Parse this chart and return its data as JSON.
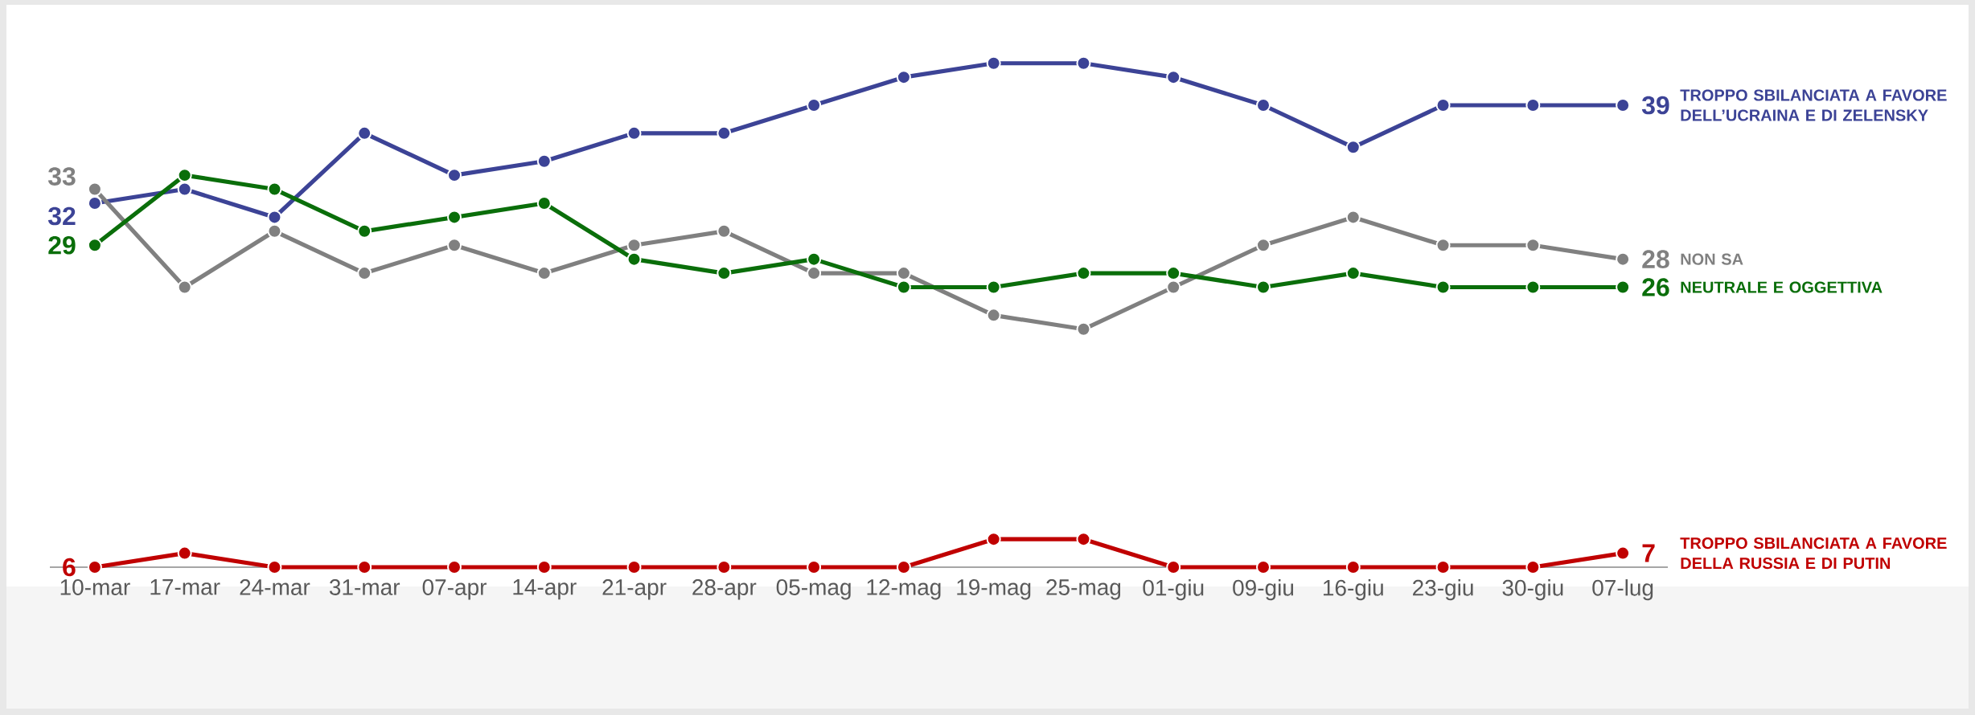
{
  "chart_data": {
    "type": "line",
    "categories": [
      "10-mar",
      "17-mar",
      "24-mar",
      "31-mar",
      "07-apr",
      "14-apr",
      "21-apr",
      "28-apr",
      "05-mag",
      "12-mag",
      "19-mag",
      "25-mag",
      "01-giu",
      "09-giu",
      "16-giu",
      "23-giu",
      "30-giu",
      "07-lug"
    ],
    "series": [
      {
        "name": "TROPPO SBILANCIATA A FAVORE DELL’UCRAINA E DI ZELENSKY",
        "color": "#3c4396",
        "values": [
          32,
          33,
          31,
          37,
          34,
          35,
          37,
          37,
          39,
          41,
          42,
          42,
          41,
          39,
          36,
          39,
          39,
          39
        ],
        "value_labels": [
          "32",
          null,
          null,
          null,
          null,
          null,
          null,
          null,
          null,
          null,
          null,
          null,
          null,
          null,
          null,
          null,
          null,
          "39"
        ]
      },
      {
        "name": "NON SA",
        "color": "#808080",
        "values": [
          33,
          26,
          30,
          27,
          29,
          27,
          29,
          30,
          27,
          27,
          24,
          23,
          26,
          29,
          31,
          29,
          29,
          28
        ],
        "value_labels": [
          "33",
          null,
          null,
          null,
          null,
          null,
          null,
          null,
          null,
          null,
          null,
          null,
          null,
          null,
          null,
          null,
          null,
          "28"
        ]
      },
      {
        "name": "NEUTRALE E OGGETTIVA",
        "color": "#0a6e0a",
        "values": [
          29,
          34,
          33,
          30,
          31,
          32,
          28,
          27,
          28,
          26,
          26,
          27,
          27,
          26,
          27,
          26,
          26,
          26
        ],
        "value_labels": [
          "29",
          null,
          null,
          null,
          null,
          null,
          null,
          null,
          null,
          null,
          null,
          null,
          null,
          null,
          null,
          null,
          null,
          "26"
        ]
      },
      {
        "name": "TROPPO SBILANCIATA A FAVORE DELLA RUSSIA E DI PUTIN",
        "color": "#c00000",
        "values": [
          6,
          7,
          6,
          6,
          6,
          6,
          6,
          6,
          6,
          6,
          8,
          8,
          6,
          6,
          6,
          6,
          6,
          7
        ],
        "value_labels": [
          "6",
          null,
          null,
          null,
          null,
          null,
          null,
          null,
          null,
          null,
          null,
          null,
          null,
          null,
          null,
          null,
          null,
          "7"
        ]
      }
    ],
    "tick_labels": "x",
    "marker": "circle",
    "line_style": "solid",
    "legend": false
  }
}
